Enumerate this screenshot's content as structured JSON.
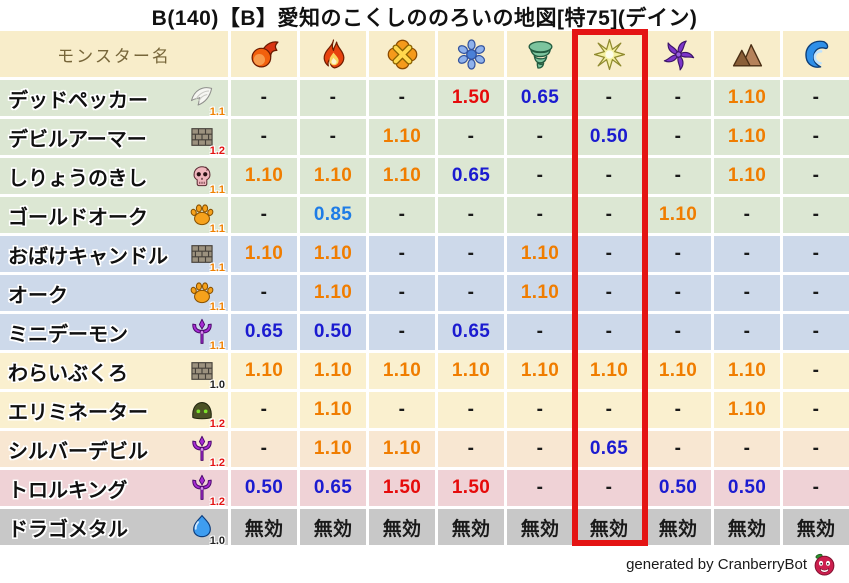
{
  "title": "B(140)【B】愛知のこくしののろいの地図[特75](デイン)",
  "footer": {
    "credit": "generated by CranberryBot",
    "icon": "cranberry-icon"
  },
  "colors": {
    "header_bg": "#f8edca",
    "row_green": "#dce7d3",
    "row_blue": "#cdd9ea",
    "row_cream": "#faf0cf",
    "row_peach": "#f8e7d2",
    "row_pink": "#efd2d6",
    "row_gray": "#c8c8c8",
    "level_orange": "#f08000",
    "level_red": "#e31212",
    "level_black": "#222222",
    "val_up": "#f07d00",
    "val_up2": "#e60b0b",
    "val_down": "#1b1bd0",
    "val_down2": "#1e7ce6",
    "val_neutral": "#1a1a1a",
    "highlight_border": "#e41414"
  },
  "chart_data": {
    "type": "table",
    "title": "B(140)【B】愛知のこくしののろいの地図[特75](デイン)",
    "name_header": "モンスター名",
    "columns": [
      "fireball",
      "flame",
      "cross-burst",
      "snowflake",
      "tornado",
      "star-burst",
      "pinwheel",
      "mountain",
      "wave"
    ],
    "highlighted_column_index": 5,
    "highlighted_element": "star-burst",
    "value_color_map": {
      "1.10": "val_up",
      "1.50": "val_up2",
      "0.85": "val_down2",
      "0.65": "val_down",
      "0.50": "val_down",
      "-": "val_neutral",
      "無効": "val_neutral"
    },
    "rows": [
      {
        "name": "デッドペッカー",
        "icon": "wing",
        "level": "1.1",
        "level_color": "orange",
        "bg": "green",
        "values": [
          "-",
          "-",
          "-",
          "1.50",
          "0.65",
          "-",
          "-",
          "1.10",
          "-"
        ]
      },
      {
        "name": "デビルアーマー",
        "icon": "brick",
        "level": "1.2",
        "level_color": "red",
        "bg": "green",
        "values": [
          "-",
          "-",
          "1.10",
          "-",
          "-",
          "0.50",
          "-",
          "1.10",
          "-"
        ]
      },
      {
        "name": "しりょうのきし",
        "icon": "skull",
        "level": "1.1",
        "level_color": "orange",
        "bg": "green",
        "values": [
          "1.10",
          "1.10",
          "1.10",
          "0.65",
          "-",
          "-",
          "-",
          "1.10",
          "-"
        ]
      },
      {
        "name": "ゴールドオーク",
        "icon": "paw",
        "level": "1.1",
        "level_color": "orange",
        "bg": "green",
        "values": [
          "-",
          "0.85",
          "-",
          "-",
          "-",
          "-",
          "1.10",
          "-",
          "-"
        ]
      },
      {
        "name": "おばけキャンドル",
        "icon": "brick",
        "level": "1.1",
        "level_color": "orange",
        "bg": "blue",
        "values": [
          "1.10",
          "1.10",
          "-",
          "-",
          "1.10",
          "-",
          "-",
          "-",
          "-"
        ]
      },
      {
        "name": "オーク",
        "icon": "paw",
        "level": "1.1",
        "level_color": "orange",
        "bg": "blue",
        "values": [
          "-",
          "1.10",
          "-",
          "-",
          "1.10",
          "-",
          "-",
          "-",
          "-"
        ]
      },
      {
        "name": "ミニデーモン",
        "icon": "trident",
        "level": "1.1",
        "level_color": "orange",
        "bg": "blue",
        "values": [
          "0.65",
          "0.50",
          "-",
          "0.65",
          "-",
          "-",
          "-",
          "-",
          "-"
        ]
      },
      {
        "name": "わらいぶくろ",
        "icon": "brick",
        "level": "1.0",
        "level_color": "black",
        "bg": "cream",
        "values": [
          "1.10",
          "1.10",
          "1.10",
          "1.10",
          "1.10",
          "1.10",
          "1.10",
          "1.10",
          "-"
        ]
      },
      {
        "name": "エリミネーター",
        "icon": "helmet",
        "level": "1.2",
        "level_color": "red",
        "bg": "cream",
        "values": [
          "-",
          "1.10",
          "-",
          "-",
          "-",
          "-",
          "-",
          "1.10",
          "-"
        ]
      },
      {
        "name": "シルバーデビル",
        "icon": "trident",
        "level": "1.2",
        "level_color": "red",
        "bg": "peach",
        "values": [
          "-",
          "1.10",
          "1.10",
          "-",
          "-",
          "0.65",
          "-",
          "-",
          "-"
        ]
      },
      {
        "name": "トロルキング",
        "icon": "trident",
        "level": "1.2",
        "level_color": "red",
        "bg": "pink",
        "values": [
          "0.50",
          "0.65",
          "1.50",
          "1.50",
          "-",
          "-",
          "0.50",
          "0.50",
          "-"
        ]
      },
      {
        "name": "ドラゴメタル",
        "icon": "slime",
        "level": "1.0",
        "level_color": "black",
        "bg": "gray",
        "values": [
          "無効",
          "無効",
          "無効",
          "無効",
          "無効",
          "無効",
          "無効",
          "無効",
          "無効"
        ]
      }
    ]
  }
}
